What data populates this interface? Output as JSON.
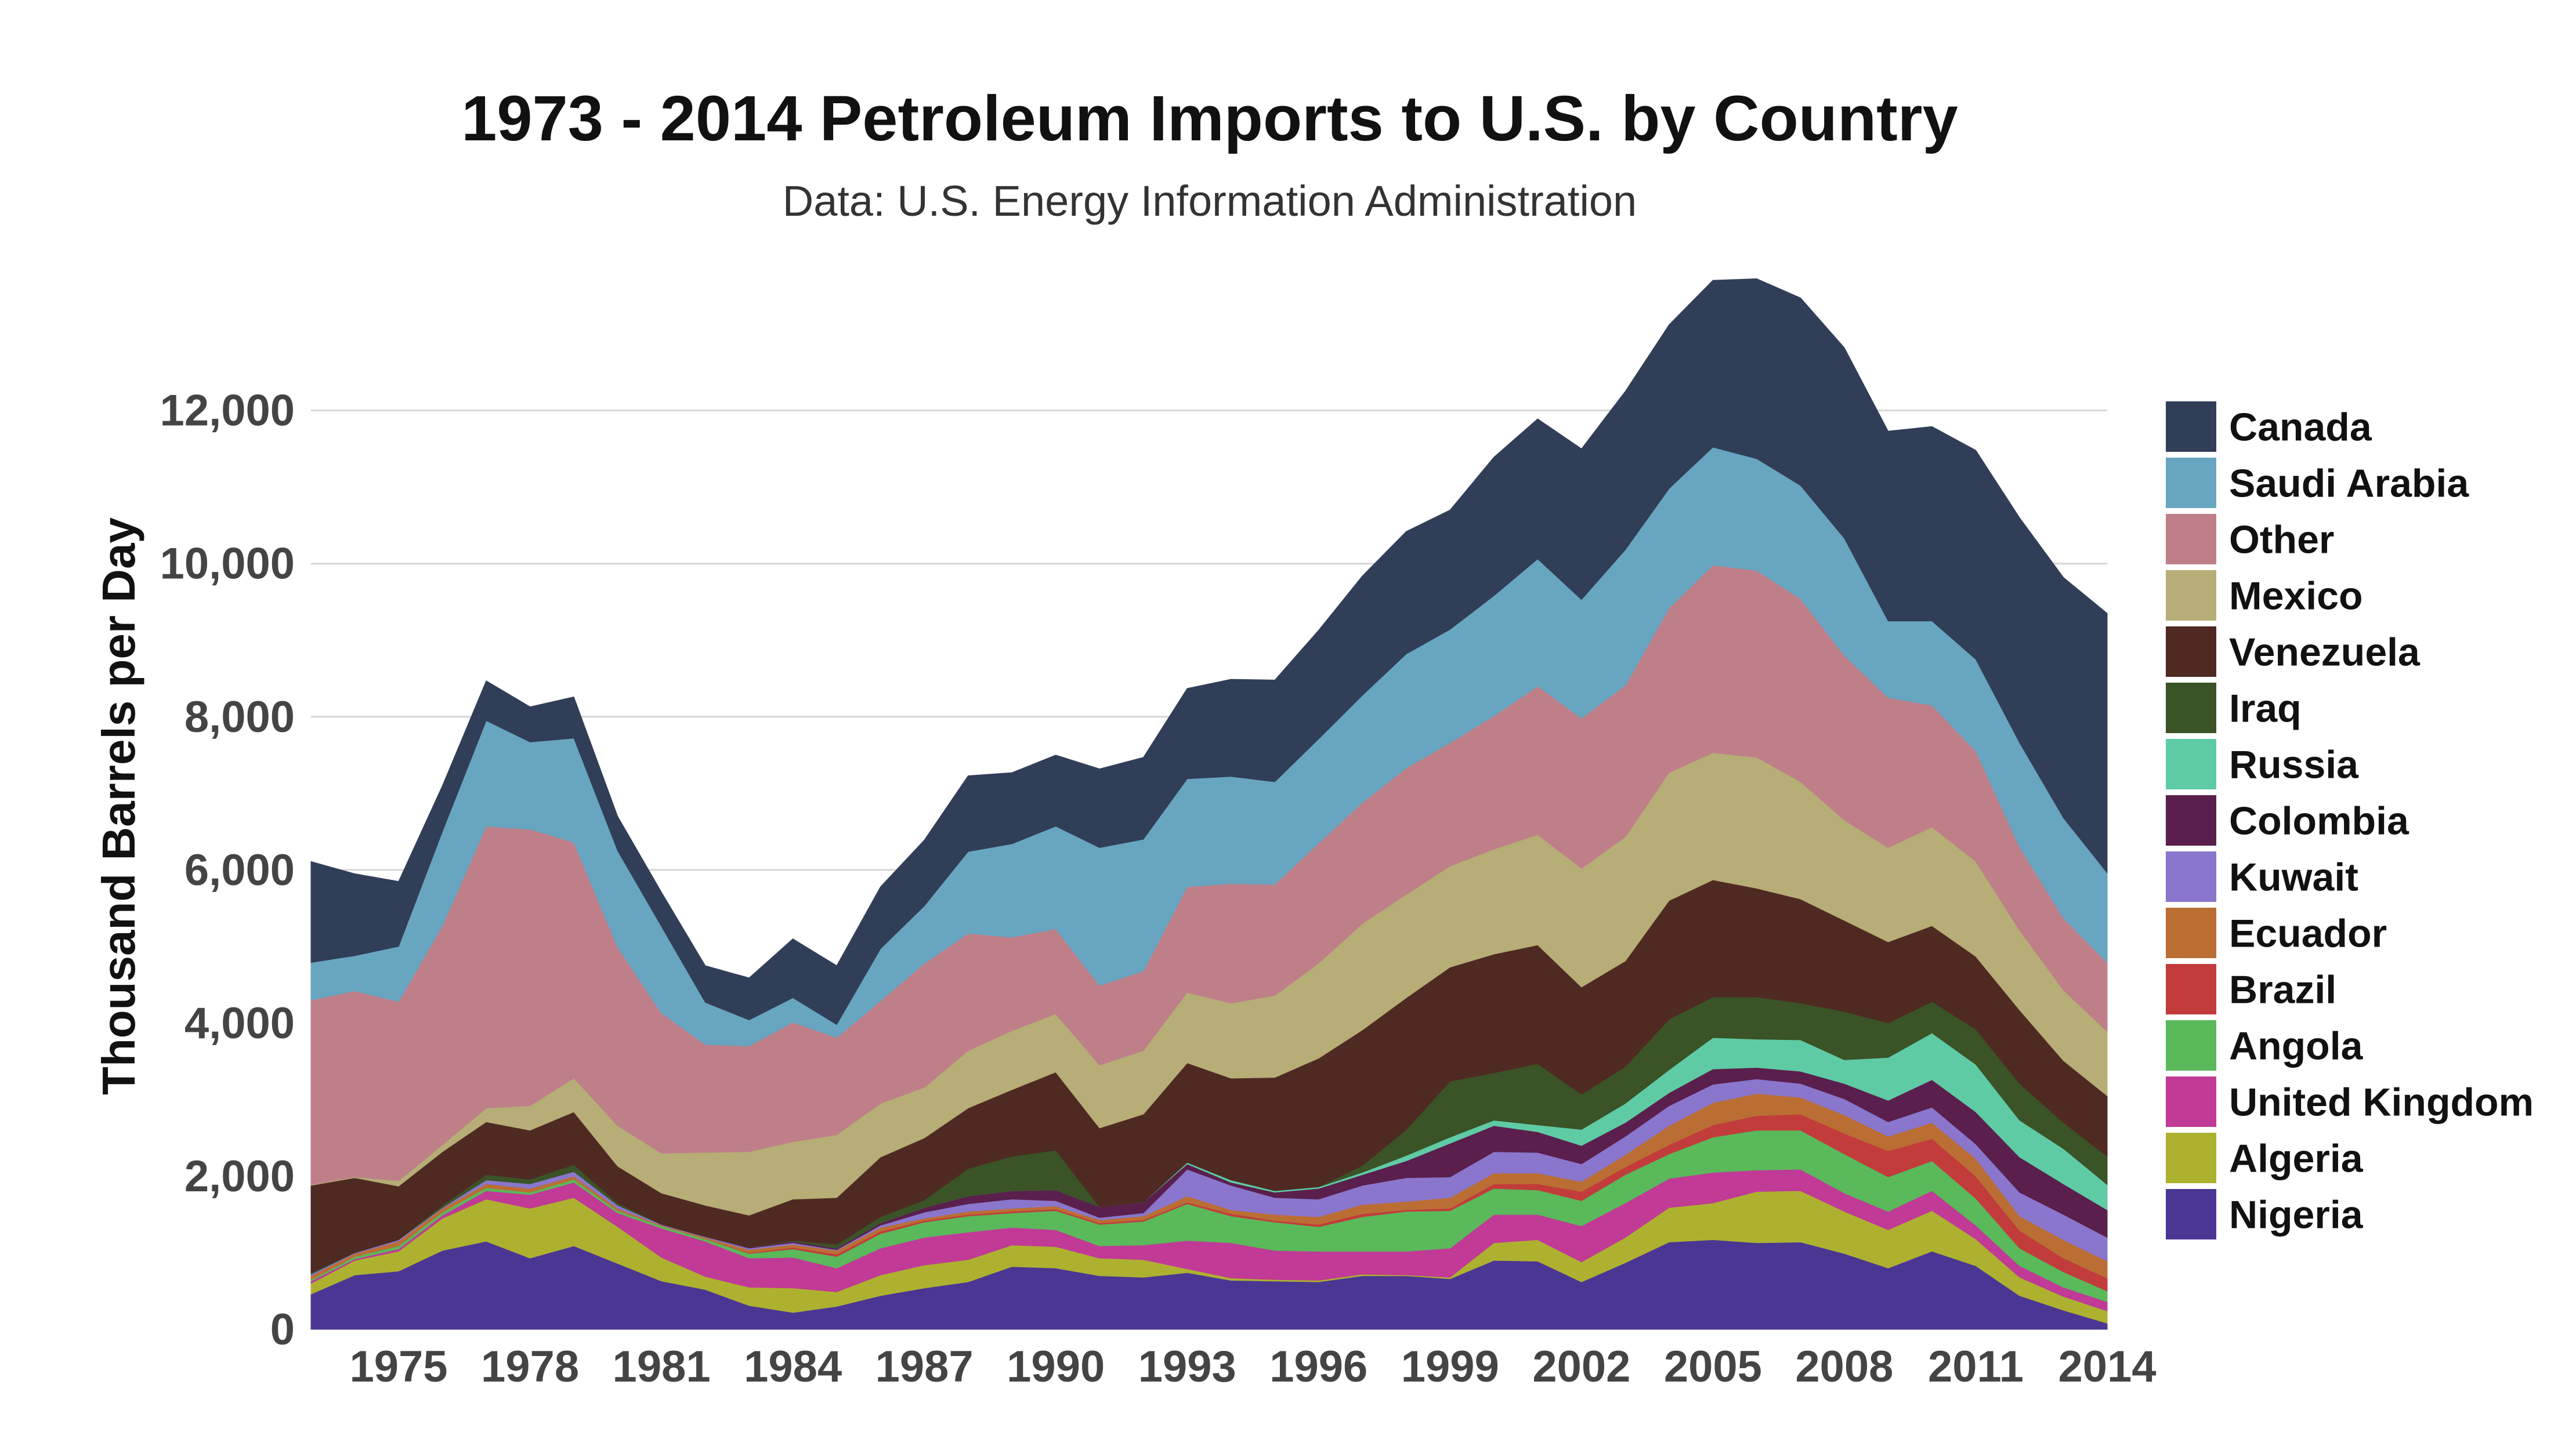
{
  "chart_data": {
    "type": "area",
    "title": "1973 - 2014 Petroleum Imports to U.S. by Country",
    "subtitle": "Data: U.S. Energy Information Administration",
    "ylabel": "Thousand Barrels per Day",
    "xlabel": "",
    "stacked": true,
    "xlim": [
      1973,
      2014
    ],
    "ylim": [
      0,
      13800
    ],
    "grid": true,
    "legend_position": "right",
    "x": [
      1973,
      1974,
      1975,
      1976,
      1977,
      1978,
      1979,
      1980,
      1981,
      1982,
      1983,
      1984,
      1985,
      1986,
      1987,
      1988,
      1989,
      1990,
      1991,
      1992,
      1993,
      1994,
      1995,
      1996,
      1997,
      1998,
      1999,
      2000,
      2001,
      2002,
      2003,
      2004,
      2005,
      2006,
      2007,
      2008,
      2009,
      2010,
      2011,
      2012,
      2013,
      2014
    ],
    "x_tick_labels": [
      "1975",
      "1978",
      "1981",
      "1984",
      "1987",
      "1990",
      "1993",
      "1996",
      "1999",
      "2002",
      "2005",
      "2008",
      "2011",
      "2014"
    ],
    "y_tick_labels": [
      "0",
      "2,000",
      "4,000",
      "6,000",
      "8,000",
      "10,000",
      "12,000"
    ],
    "series": [
      {
        "name": "Nigeria",
        "color": "#4B3693",
        "values": [
          460,
          710,
          760,
          1030,
          1150,
          930,
          1090,
          860,
          630,
          520,
          310,
          220,
          300,
          440,
          540,
          620,
          820,
          800,
          700,
          680,
          740,
          640,
          630,
          620,
          700,
          700,
          660,
          900,
          890,
          620,
          870,
          1140,
          1170,
          1130,
          1140,
          990,
          800,
          1020,
          830,
          440,
          250,
          80
        ]
      },
      {
        "name": "Algeria",
        "color": "#AEB130",
        "values": [
          140,
          190,
          260,
          420,
          550,
          650,
          630,
          480,
          310,
          170,
          240,
          320,
          190,
          270,
          300,
          290,
          280,
          280,
          230,
          230,
          50,
          30,
          20,
          20,
          20,
          10,
          20,
          230,
          280,
          260,
          330,
          450,
          480,
          670,
          670,
          550,
          500,
          530,
          350,
          240,
          180,
          160
        ]
      },
      {
        "name": "United Kingdom",
        "color": "#C03A96",
        "values": [
          30,
          20,
          30,
          40,
          110,
          180,
          200,
          180,
          380,
          460,
          380,
          400,
          310,
          350,
          360,
          360,
          230,
          220,
          160,
          190,
          370,
          460,
          380,
          380,
          300,
          310,
          380,
          370,
          330,
          470,
          450,
          380,
          400,
          280,
          280,
          240,
          240,
          260,
          180,
          150,
          120,
          120
        ]
      },
      {
        "name": "Angola",
        "color": "#5AB95A",
        "values": [
          20,
          30,
          40,
          40,
          40,
          30,
          40,
          30,
          30,
          30,
          60,
          110,
          150,
          190,
          200,
          210,
          190,
          250,
          280,
          310,
          480,
          350,
          370,
          320,
          450,
          520,
          490,
          340,
          320,
          330,
          370,
          320,
          460,
          520,
          510,
          510,
          450,
          390,
          350,
          230,
          200,
          140
        ]
      },
      {
        "name": "Brazil",
        "color": "#C23C3C",
        "values": [
          0,
          0,
          0,
          0,
          0,
          0,
          0,
          0,
          0,
          0,
          10,
          20,
          30,
          30,
          20,
          20,
          20,
          20,
          20,
          20,
          20,
          30,
          20,
          30,
          40,
          20,
          30,
          60,
          80,
          120,
          100,
          120,
          160,
          190,
          210,
          270,
          340,
          290,
          290,
          230,
          180,
          170
        ]
      },
      {
        "name": "Ecuador",
        "color": "#BA6E34",
        "values": [
          50,
          40,
          60,
          50,
          50,
          50,
          40,
          30,
          10,
          20,
          40,
          40,
          50,
          50,
          30,
          40,
          40,
          40,
          40,
          50,
          80,
          50,
          80,
          100,
          120,
          110,
          140,
          140,
          140,
          130,
          160,
          250,
          290,
          290,
          220,
          240,
          190,
          210,
          230,
          190,
          240,
          220
        ]
      },
      {
        "name": "Kuwait",
        "color": "#8A76CC",
        "values": [
          20,
          10,
          20,
          10,
          50,
          60,
          60,
          40,
          10,
          10,
          20,
          20,
          10,
          30,
          80,
          100,
          120,
          70,
          30,
          40,
          350,
          320,
          220,
          230,
          250,
          310,
          270,
          280,
          270,
          230,
          240,
          260,
          240,
          190,
          180,
          210,
          190,
          200,
          190,
          310,
          330,
          310
        ]
      },
      {
        "name": "Colombia",
        "color": "#5A1F4C",
        "values": [
          0,
          0,
          0,
          0,
          0,
          0,
          0,
          0,
          0,
          0,
          10,
          20,
          20,
          30,
          60,
          100,
          110,
          140,
          140,
          140,
          70,
          40,
          70,
          140,
          140,
          220,
          440,
          340,
          270,
          240,
          180,
          170,
          200,
          150,
          160,
          200,
          280,
          360,
          420,
          460,
          400,
          360
        ]
      },
      {
        "name": "Russia",
        "color": "#5FCBA5",
        "values": [
          0,
          0,
          0,
          0,
          0,
          0,
          0,
          0,
          0,
          0,
          0,
          0,
          0,
          0,
          0,
          0,
          0,
          0,
          0,
          0,
          20,
          30,
          20,
          20,
          30,
          70,
          80,
          70,
          90,
          210,
          250,
          300,
          410,
          370,
          410,
          310,
          560,
          610,
          620,
          480,
          460,
          330
        ]
      },
      {
        "name": "Iraq",
        "color": "#3A5327",
        "values": [
          20,
          0,
          0,
          30,
          70,
          60,
          90,
          30,
          0,
          0,
          0,
          10,
          50,
          80,
          100,
          360,
          450,
          520,
          0,
          0,
          0,
          0,
          0,
          0,
          90,
          340,
          730,
          620,
          800,
          460,
          480,
          660,
          530,
          550,
          480,
          630,
          450,
          410,
          460,
          480,
          340,
          370
        ]
      },
      {
        "name": "Venezuela",
        "color": "#4F2A22",
        "values": [
          1140,
          980,
          700,
          700,
          690,
          640,
          690,
          480,
          410,
          410,
          420,
          540,
          610,
          780,
          810,
          790,
          870,
          1020,
          1030,
          1150,
          1300,
          1330,
          1480,
          1680,
          1770,
          1720,
          1490,
          1550,
          1550,
          1400,
          1380,
          1550,
          1530,
          1420,
          1360,
          1190,
          1060,
          990,
          950,
          960,
          810,
          790
        ]
      },
      {
        "name": "Mexico",
        "color": "#B7AD76",
        "values": [
          10,
          10,
          70,
          90,
          180,
          320,
          440,
          530,
          520,
          690,
          830,
          750,
          820,
          700,
          660,
          750,
          770,
          760,
          820,
          830,
          920,
          980,
          1070,
          1240,
          1390,
          1350,
          1320,
          1370,
          1440,
          1550,
          1620,
          1670,
          1660,
          1710,
          1530,
          1310,
          1230,
          1290,
          1240,
          1040,
          920,
          840
        ]
      },
      {
        "name": "Other",
        "color": "#BE7F89",
        "values": [
          2410,
          2430,
          2340,
          2860,
          3680,
          3610,
          3080,
          2330,
          1830,
          1410,
          1380,
          1560,
          1270,
          1340,
          1620,
          1530,
          1220,
          1110,
          1040,
          1040,
          1380,
          1560,
          1450,
          1570,
          1580,
          1650,
          1610,
          1740,
          1940,
          1960,
          1980,
          2150,
          2450,
          2440,
          2390,
          2150,
          1960,
          1590,
          1440,
          1090,
          940,
          900
        ]
      },
      {
        "name": "Saudi Arabia",
        "color": "#68A5C0",
        "values": [
          490,
          460,
          720,
          1230,
          1380,
          1140,
          1360,
          1260,
          1130,
          550,
          340,
          320,
          170,
          680,
          750,
          1070,
          1220,
          1340,
          1800,
          1720,
          1410,
          1400,
          1340,
          1360,
          1400,
          1490,
          1480,
          1570,
          1660,
          1550,
          1770,
          1560,
          1540,
          1460,
          1480,
          1530,
          1000,
          1100,
          1200,
          1360,
          1310,
          1170
        ]
      },
      {
        "name": "Canada",
        "color": "#313E58",
        "values": [
          1320,
          1070,
          850,
          600,
          520,
          460,
          540,
          450,
          450,
          480,
          550,
          770,
          770,
          810,
          860,
          990,
          930,
          930,
          1030,
          1070,
          1180,
          1270,
          1330,
          1420,
          1560,
          1600,
          1560,
          1810,
          1830,
          1970,
          2070,
          2140,
          2180,
          2350,
          2450,
          2490,
          2480,
          2540,
          2730,
          2940,
          3140,
          3390
        ]
      }
    ]
  }
}
